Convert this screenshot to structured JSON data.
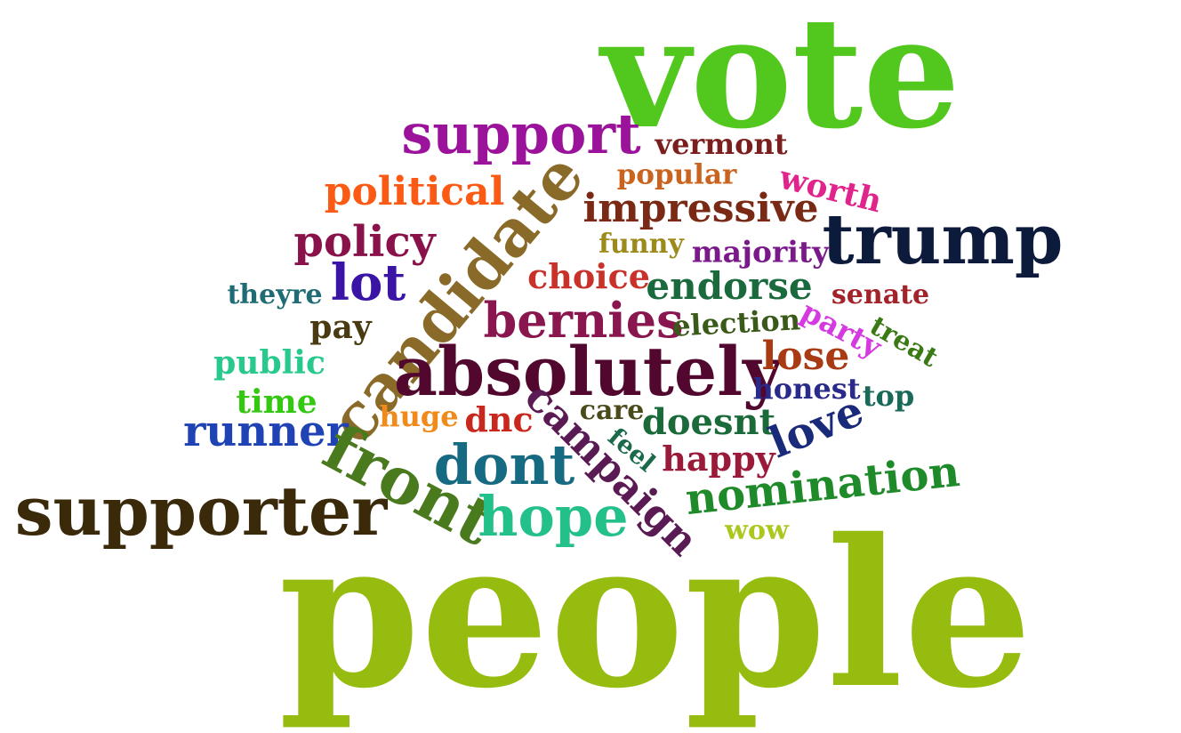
{
  "words": [
    {
      "id": "vote",
      "text": "vote",
      "color": "#52c81e"
    },
    {
      "id": "support",
      "text": "support",
      "color": "#9b139b"
    },
    {
      "id": "vermont",
      "text": "vermont",
      "color": "#7a1e1e"
    },
    {
      "id": "popular",
      "text": "popular",
      "color": "#c9631e"
    },
    {
      "id": "worth",
      "text": "worth",
      "color": "#e0248c"
    },
    {
      "id": "political",
      "text": "political",
      "color": "#fb5a14"
    },
    {
      "id": "candidate",
      "text": "candidate",
      "color": "#8a6a28"
    },
    {
      "id": "impressive",
      "text": "impressive",
      "color": "#7a2a14"
    },
    {
      "id": "trump",
      "text": "trump",
      "color": "#0c1a3c"
    },
    {
      "id": "policy",
      "text": "policy",
      "color": "#8a124a"
    },
    {
      "id": "funny",
      "text": "funny",
      "color": "#9c8a1a"
    },
    {
      "id": "majority",
      "text": "majority",
      "color": "#7a1a8a"
    },
    {
      "id": "lot",
      "text": "lot",
      "color": "#3a14a4"
    },
    {
      "id": "choice",
      "text": "choice",
      "color": "#c8322a"
    },
    {
      "id": "endorse",
      "text": "endorse",
      "color": "#1a6a3e"
    },
    {
      "id": "senate",
      "text": "senate",
      "color": "#a2242a"
    },
    {
      "id": "theyre",
      "text": "theyre",
      "color": "#1f6c74"
    },
    {
      "id": "bernies",
      "text": "bernies",
      "color": "#8a1650"
    },
    {
      "id": "election",
      "text": "election",
      "color": "#3a5a1a"
    },
    {
      "id": "party",
      "text": "party",
      "color": "#d43ae0"
    },
    {
      "id": "treat",
      "text": "treat",
      "color": "#3a7a14"
    },
    {
      "id": "pay",
      "text": "pay",
      "color": "#4a3a12"
    },
    {
      "id": "public",
      "text": "public",
      "color": "#27c98c"
    },
    {
      "id": "absolutely",
      "text": "absolutely",
      "color": "#52072e"
    },
    {
      "id": "lose",
      "text": "lose",
      "color": "#a83a14"
    },
    {
      "id": "honest",
      "text": "honest",
      "color": "#2a2a8a"
    },
    {
      "id": "top",
      "text": "top",
      "color": "#1a6a5a"
    },
    {
      "id": "time",
      "text": "time",
      "color": "#34c812"
    },
    {
      "id": "huge",
      "text": "huge",
      "color": "#f08a1a"
    },
    {
      "id": "dnc",
      "text": "dnc",
      "color": "#c8281e"
    },
    {
      "id": "care",
      "text": "care",
      "color": "#4a4a1a"
    },
    {
      "id": "doesnt",
      "text": "doesnt",
      "color": "#1a6a3a"
    },
    {
      "id": "love",
      "text": "love",
      "color": "#1a2a7a"
    },
    {
      "id": "campaign",
      "text": "campaign",
      "color": "#5a1a54"
    },
    {
      "id": "runner",
      "text": "runner",
      "color": "#1f43b4"
    },
    {
      "id": "feel",
      "text": "feel",
      "color": "#1a6a4a"
    },
    {
      "id": "happy",
      "text": "happy",
      "color": "#9a1a3a"
    },
    {
      "id": "front",
      "text": "front",
      "color": "#4a7a1e"
    },
    {
      "id": "dont",
      "text": "dont",
      "color": "#166a82"
    },
    {
      "id": "nomination",
      "text": "nomination",
      "color": "#1f8a2a"
    },
    {
      "id": "supporter",
      "text": "supporter",
      "color": "#3a2a0a"
    },
    {
      "id": "hope",
      "text": "hope",
      "color": "#24c08a"
    },
    {
      "id": "wow",
      "text": "wow",
      "color": "#aac81e"
    },
    {
      "id": "people",
      "text": "people",
      "color": "#96bc10"
    }
  ]
}
